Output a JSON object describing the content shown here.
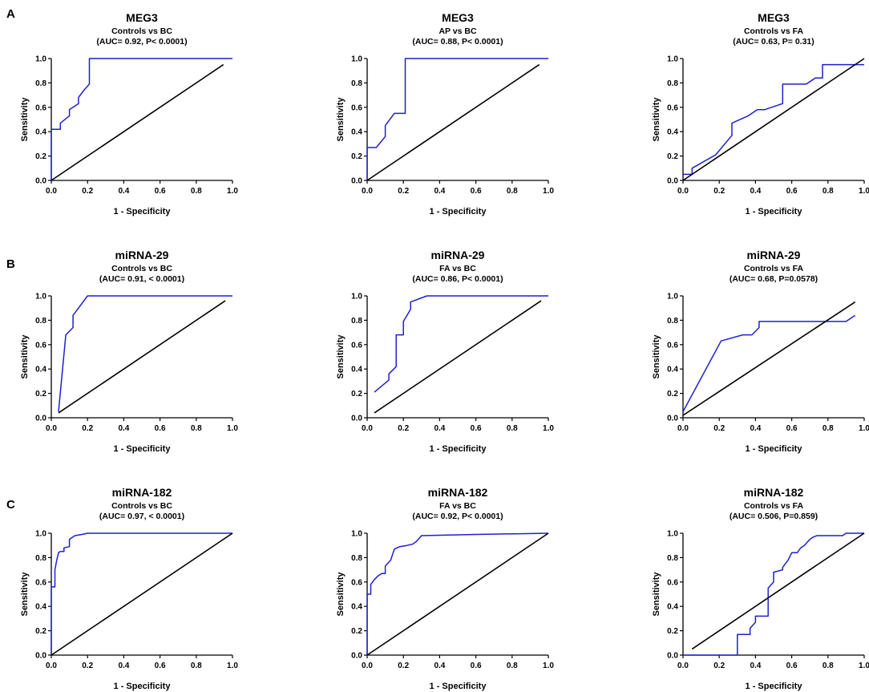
{
  "chart_data": {
    "row_labels": [
      "A",
      "B",
      "C"
    ],
    "panels": [
      {
        "type": "line",
        "row": 0,
        "col": 0,
        "title": "MEG3",
        "subtitle": "Controls vs BC",
        "annotation": "(AUC= 0.92, P< 0.0001)",
        "xlabel": "1 - Specificity",
        "ylabel": "Sensitivity",
        "xlim": [
          0,
          1
        ],
        "ylim": [
          0,
          1
        ],
        "x_ticks": [
          "0.0",
          "0.2",
          "0.4",
          "0.6",
          "0.8",
          "1.0"
        ],
        "y_ticks": [
          "0.0",
          "0.2",
          "0.4",
          "0.6",
          "0.8",
          "1.0"
        ],
        "series": [
          {
            "name": "ROC",
            "color": "#1f1fd0",
            "x": [
              0,
              0,
              0.05,
              0.05,
              0.1,
              0.1,
              0.15,
              0.15,
              0.18,
              0.21,
              0.21,
              1.0
            ],
            "y": [
              0,
              0.42,
              0.42,
              0.47,
              0.53,
              0.58,
              0.63,
              0.68,
              0.74,
              0.79,
              1.0,
              1.0
            ]
          },
          {
            "name": "Reference",
            "color": "#000000",
            "x": [
              0,
              0.95
            ],
            "y": [
              0,
              0.95
            ]
          }
        ]
      },
      {
        "type": "line",
        "row": 0,
        "col": 1,
        "title": "MEG3",
        "subtitle": "AP vs BC",
        "annotation": "(AUC= 0.88, P< 0.0001)",
        "xlabel": "1 - Specificity",
        "ylabel": "Sensitivity",
        "xlim": [
          0,
          1
        ],
        "ylim": [
          0,
          1
        ],
        "x_ticks": [
          "0.0",
          "0.2",
          "0.4",
          "0.6",
          "0.8",
          "1.0"
        ],
        "y_ticks": [
          "0.0",
          "0.2",
          "0.4",
          "0.6",
          "0.8",
          "1.0"
        ],
        "series": [
          {
            "name": "ROC",
            "color": "#1f1fd0",
            "x": [
              0,
              0,
              0.05,
              0.1,
              0.1,
              0.15,
              0.15,
              0.21,
              0.21,
              1.0
            ],
            "y": [
              0,
              0.27,
              0.27,
              0.36,
              0.45,
              0.55,
              0.55,
              0.55,
              1.0,
              1.0
            ]
          },
          {
            "name": "Reference",
            "color": "#000000",
            "x": [
              0,
              0.95
            ],
            "y": [
              0,
              0.95
            ]
          }
        ]
      },
      {
        "type": "line",
        "row": 0,
        "col": 2,
        "title": "MEG3",
        "subtitle": "Controls vs FA",
        "annotation": "(AUC= 0.63, P= 0.31)",
        "xlabel": "1 - Specificity",
        "ylabel": "Sensitivity",
        "xlim": [
          0,
          1
        ],
        "ylim": [
          0,
          1
        ],
        "x_ticks": [
          "0.0",
          "0.2",
          "0.4",
          "0.6",
          "0.8",
          "1.0"
        ],
        "y_ticks": [
          "0.0",
          "0.2",
          "0.4",
          "0.6",
          "0.8",
          "1.0"
        ],
        "series": [
          {
            "name": "ROC",
            "color": "#1f1fd0",
            "x": [
              0,
              0.05,
              0.05,
              0.18,
              0.27,
              0.27,
              0.36,
              0.41,
              0.45,
              0.55,
              0.55,
              0.64,
              0.68,
              0.73,
              0.77,
              0.77,
              1.0
            ],
            "y": [
              0.05,
              0.05,
              0.1,
              0.21,
              0.37,
              0.47,
              0.53,
              0.58,
              0.58,
              0.63,
              0.79,
              0.79,
              0.79,
              0.84,
              0.84,
              0.95,
              0.95
            ]
          },
          {
            "name": "Reference",
            "color": "#000000",
            "x": [
              0,
              1
            ],
            "y": [
              0,
              1
            ]
          }
        ]
      },
      {
        "type": "line",
        "row": 1,
        "col": 0,
        "title": "miRNA-29",
        "subtitle": "Controls vs BC",
        "annotation": "(AUC= 0.91, < 0.0001)",
        "xlabel": "1 - Specificity",
        "ylabel": "Sensitivity",
        "xlim": [
          0,
          1
        ],
        "ylim": [
          0,
          1
        ],
        "x_ticks": [
          "0.0",
          "0.2",
          "0.4",
          "0.6",
          "0.8",
          "1.0"
        ],
        "y_ticks": [
          "0.0",
          "0.2",
          "0.4",
          "0.6",
          "0.8",
          "1.0"
        ],
        "series": [
          {
            "name": "ROC",
            "color": "#1f1fd0",
            "x": [
              0.04,
              0.08,
              0.08,
              0.12,
              0.12,
              0.2,
              1.0
            ],
            "y": [
              0.05,
              0.68,
              0.68,
              0.74,
              0.84,
              1.0,
              1.0
            ]
          },
          {
            "name": "Reference",
            "color": "#000000",
            "x": [
              0.04,
              0.96
            ],
            "y": [
              0.04,
              0.96
            ]
          }
        ]
      },
      {
        "type": "line",
        "row": 1,
        "col": 1,
        "title": "miRNA-29",
        "subtitle": "FA vs BC",
        "annotation": "(AUC= 0.86, P< 0.0001)",
        "xlabel": "1 - Specificity",
        "ylabel": "Sensitivity",
        "xlim": [
          0,
          1
        ],
        "ylim": [
          0,
          1
        ],
        "x_ticks": [
          "0.0",
          "0.2",
          "0.4",
          "0.6",
          "0.8",
          "1.0"
        ],
        "y_ticks": [
          "0.0",
          "0.2",
          "0.4",
          "0.6",
          "0.8",
          "1.0"
        ],
        "series": [
          {
            "name": "ROC",
            "color": "#1f1fd0",
            "x": [
              0.04,
              0.12,
              0.12,
              0.16,
              0.16,
              0.2,
              0.2,
              0.24,
              0.24,
              0.33,
              1.0
            ],
            "y": [
              0.21,
              0.31,
              0.36,
              0.42,
              0.68,
              0.68,
              0.79,
              0.89,
              0.95,
              1.0,
              1.0
            ]
          },
          {
            "name": "Reference",
            "color": "#000000",
            "x": [
              0.04,
              0.96
            ],
            "y": [
              0.04,
              0.96
            ]
          }
        ]
      },
      {
        "type": "line",
        "row": 1,
        "col": 2,
        "title": "miRNA-29",
        "subtitle": "Controls vs FA",
        "annotation": "(AUC= 0.68, P=0.0578)",
        "xlabel": "1 - Specificity",
        "ylabel": "Sensitivity",
        "xlim": [
          0,
          1
        ],
        "ylim": [
          0,
          1
        ],
        "x_ticks": [
          "0.0",
          "0.2",
          "0.4",
          "0.6",
          "0.8",
          "1.0"
        ],
        "y_ticks": [
          "0.0",
          "0.2",
          "0.4",
          "0.6",
          "0.8",
          "1.0"
        ],
        "series": [
          {
            "name": "ROC",
            "color": "#1f1fd0",
            "x": [
              0,
              0.21,
              0.33,
              0.38,
              0.42,
              0.42,
              0.9,
              0.95
            ],
            "y": [
              0.05,
              0.63,
              0.68,
              0.68,
              0.74,
              0.79,
              0.79,
              0.84
            ]
          },
          {
            "name": "Reference",
            "color": "#000000",
            "x": [
              0,
              0.95
            ],
            "y": [
              0.02,
              0.95
            ]
          }
        ]
      },
      {
        "type": "line",
        "row": 2,
        "col": 0,
        "title": "miRNA-182",
        "subtitle": "Controls vs BC",
        "annotation": "(AUC= 0.97, < 0.0001)",
        "xlabel": "1 - Specificity",
        "ylabel": "Sensitivity",
        "xlim": [
          0,
          1
        ],
        "ylim": [
          0,
          1
        ],
        "x_ticks": [
          "0.0",
          "0.2",
          "0.4",
          "0.6",
          "0.8",
          "1.0"
        ],
        "y_ticks": [
          "0.0",
          "0.2",
          "0.4",
          "0.6",
          "0.8",
          "1.0"
        ],
        "series": [
          {
            "name": "ROC",
            "color": "#1f1fd0",
            "x": [
              0,
              0,
              0.02,
              0.02,
              0.03,
              0.04,
              0.05,
              0.07,
              0.07,
              0.1,
              0.1,
              0.13,
              0.17,
              0.2,
              1.0
            ],
            "y": [
              0,
              0.56,
              0.56,
              0.7,
              0.78,
              0.84,
              0.85,
              0.85,
              0.88,
              0.89,
              0.95,
              0.98,
              0.99,
              1.0,
              1.0
            ]
          },
          {
            "name": "Reference",
            "color": "#000000",
            "x": [
              0,
              1
            ],
            "y": [
              0,
              1
            ]
          }
        ]
      },
      {
        "type": "line",
        "row": 2,
        "col": 1,
        "title": "miRNA-182",
        "subtitle": "FA vs BC",
        "annotation": "(AUC= 0.92, P< 0.0001)",
        "xlabel": "1 - Specificity",
        "ylabel": "Sensitivity",
        "xlim": [
          0,
          1
        ],
        "ylim": [
          0,
          1
        ],
        "x_ticks": [
          "0.0",
          "0.2",
          "0.4",
          "0.6",
          "0.8",
          "1.0"
        ],
        "y_ticks": [
          "0.0",
          "0.2",
          "0.4",
          "0.6",
          "0.8",
          "1.0"
        ],
        "series": [
          {
            "name": "ROC",
            "color": "#1f1fd0",
            "x": [
              0,
              0,
              0.02,
              0.02,
              0.04,
              0.06,
              0.08,
              0.1,
              0.1,
              0.13,
              0.15,
              0.18,
              0.22,
              0.25,
              0.27,
              0.3,
              0.6,
              1.0
            ],
            "y": [
              0,
              0.5,
              0.5,
              0.58,
              0.62,
              0.65,
              0.67,
              0.67,
              0.73,
              0.78,
              0.87,
              0.89,
              0.9,
              0.91,
              0.93,
              0.98,
              0.99,
              1.0
            ]
          },
          {
            "name": "Reference",
            "color": "#000000",
            "x": [
              0,
              1
            ],
            "y": [
              0,
              1
            ]
          }
        ]
      },
      {
        "type": "line",
        "row": 2,
        "col": 2,
        "title": "miRNA-182",
        "subtitle": "Controls vs FA",
        "annotation": "(AUC= 0.506, P=0.859)",
        "xlabel": "1 - Specificity",
        "ylabel": "Sensitivity",
        "xlim": [
          0,
          1
        ],
        "ylim": [
          0,
          1
        ],
        "x_ticks": [
          "0.0",
          "0.2",
          "0.4",
          "0.6",
          "0.8",
          "1.0"
        ],
        "y_ticks": [
          "0.0",
          "0.2",
          "0.4",
          "0.6",
          "0.8",
          "1.0"
        ],
        "series": [
          {
            "name": "ROC",
            "color": "#1f1fd0",
            "x": [
              0,
              0.3,
              0.3,
              0.37,
              0.37,
              0.4,
              0.4,
              0.47,
              0.47,
              0.5,
              0.5,
              0.55,
              0.55,
              0.58,
              0.6,
              0.63,
              0.65,
              0.67,
              0.7,
              0.72,
              0.74,
              0.77,
              0.8,
              0.88,
              0.9,
              1.0
            ],
            "y": [
              0,
              0,
              0.17,
              0.17,
              0.22,
              0.27,
              0.32,
              0.32,
              0.55,
              0.6,
              0.68,
              0.7,
              0.72,
              0.78,
              0.84,
              0.84,
              0.88,
              0.9,
              0.95,
              0.97,
              0.98,
              0.98,
              0.98,
              0.98,
              1.0,
              1.0
            ]
          },
          {
            "name": "Reference",
            "color": "#000000",
            "x": [
              0.05,
              1
            ],
            "y": [
              0.05,
              1
            ]
          }
        ]
      }
    ]
  }
}
